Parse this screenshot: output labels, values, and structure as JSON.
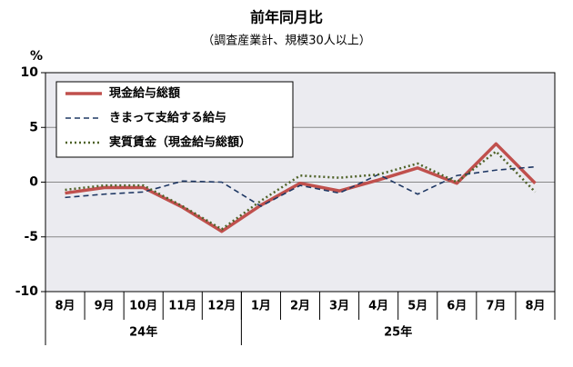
{
  "chart_data": {
    "type": "line",
    "title": "前年同月比",
    "subtitle": "（調査産業計、規模30人以上）",
    "y_unit": "%",
    "categories": [
      "8月",
      "9月",
      "10月",
      "11月",
      "12月",
      "1月",
      "2月",
      "3月",
      "4月",
      "5月",
      "6月",
      "7月",
      "8月"
    ],
    "year_labels": [
      "24年",
      "25年"
    ],
    "ylim": [
      -10,
      10
    ],
    "yticks": [
      10,
      5,
      0,
      -5,
      -10
    ],
    "grid": true,
    "legend": "top-left",
    "series": [
      {
        "name": "現金給与総額",
        "color": "#c0504d",
        "values": [
          -1.0,
          -0.5,
          -0.5,
          -2.3,
          -4.5,
          -2.1,
          -0.1,
          -0.8,
          0.2,
          1.3,
          -0.1,
          3.5,
          -0.1
        ]
      },
      {
        "name": "きまって支給する給与",
        "color": "#1f3864",
        "values": [
          -1.4,
          -1.1,
          -0.9,
          0.1,
          0.0,
          -2.2,
          -0.3,
          -1.0,
          0.7,
          -1.1,
          0.6,
          1.1,
          1.4
        ]
      },
      {
        "name": "実質賃金（現金給与総額）",
        "color": "#4f6228",
        "values": [
          -0.7,
          -0.3,
          -0.3,
          -2.2,
          -4.3,
          -1.7,
          0.6,
          0.4,
          0.7,
          1.7,
          0.0,
          2.8,
          -0.9
        ]
      }
    ]
  }
}
